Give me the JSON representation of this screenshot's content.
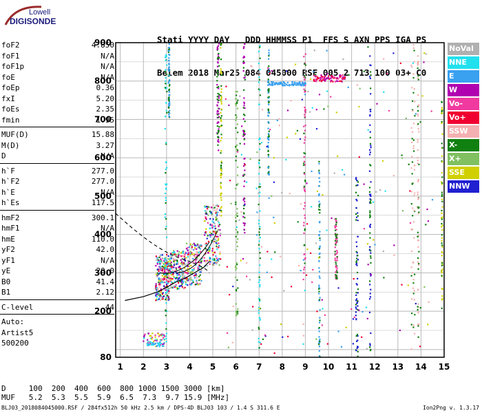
{
  "logo": {
    "line1": "Lowell",
    "line2": "DIGISONDE"
  },
  "header": {
    "line1": "Stati YYYY DAY   DDD HHMMSS P1  FFS S AXN PPS IGA PS",
    "line2": "Belem 2018 Mar25 084 045000 RSF 005 2 713 100 03+ C0"
  },
  "params": [
    [
      {
        "k": "foF2",
        "v": "4.850"
      },
      {
        "k": "foF1",
        "v": "N/A"
      },
      {
        "k": "foF1p",
        "v": "N/A"
      },
      {
        "k": "foE",
        "v": "N/A"
      },
      {
        "k": "foEp",
        "v": "0.36"
      },
      {
        "k": "fxI",
        "v": "5.20"
      },
      {
        "k": "foEs",
        "v": "2.35"
      },
      {
        "k": "fmin",
        "v": "1.95"
      }
    ],
    [
      {
        "k": "MUF(D)",
        "v": "15.88"
      },
      {
        "k": "M(D)",
        "v": "3.27"
      },
      {
        "k": "D",
        "v": "N/A"
      }
    ],
    [
      {
        "k": "h`F",
        "v": "277.0"
      },
      {
        "k": "h`F2",
        "v": "277.0"
      },
      {
        "k": "h`E",
        "v": "N/A"
      },
      {
        "k": "h`Es",
        "v": "117.5"
      }
    ],
    [
      {
        "k": "hmF2",
        "v": "300.1"
      },
      {
        "k": "hmF1",
        "v": "N/A"
      },
      {
        "k": "hmE",
        "v": "110.0"
      },
      {
        "k": "yF2",
        "v": "42.0"
      },
      {
        "k": "yF1",
        "v": "N/A"
      },
      {
        "k": "yE",
        "v": "20.0"
      },
      {
        "k": "B0",
        "v": "41.4"
      },
      {
        "k": "B1",
        "v": "2.12"
      }
    ],
    [
      {
        "k": "C-level",
        "v": "44"
      }
    ]
  ],
  "auto": {
    "line1": "Auto:",
    "line2": "Artist5",
    "line3": "500200"
  },
  "legend": [
    {
      "label": "NoVal",
      "color": "#b0b0b0"
    },
    {
      "label": "NNE",
      "color": "#22e0ee"
    },
    {
      "label": "E",
      "color": "#3aa0f0"
    },
    {
      "label": "W",
      "color": "#b000b0"
    },
    {
      "label": "Vo-",
      "color": "#f03aa0"
    },
    {
      "label": "Vo+",
      "color": "#f00030"
    },
    {
      "label": "SSW",
      "color": "#f4b0b0"
    },
    {
      "label": "X-",
      "color": "#108010"
    },
    {
      "label": "X+",
      "color": "#80c060"
    },
    {
      "label": "SSE",
      "color": "#d0d000"
    },
    {
      "label": "NNW",
      "color": "#2020d0"
    }
  ],
  "axes": {
    "y_ticks": [
      "900",
      "800",
      "700",
      "600",
      "500",
      "400",
      "300",
      "200",
      "80"
    ],
    "x_ticks": [
      "1",
      "2",
      "3",
      "4",
      "5",
      "6",
      "7",
      "8",
      "9",
      "10",
      "11",
      "12",
      "13",
      "14",
      "15"
    ]
  },
  "bottom": {
    "line1": "D     100  200  400  600  800 1000 1500 3000 [km]",
    "line2": "MUF   5.2  5.3  5.5  5.9  6.5  7.3  9.7 15.9 [MHz]"
  },
  "footer": "BLJ03_2018084045000.RSF / 284fx512h 50 kHz 2.5 km / DPS-4D BLJ03 103 / 1.4 S 311.6 E",
  "version": "Ion2Png v. 1.3.17",
  "chart_data": {
    "type": "scatter",
    "title": "",
    "xlabel": "",
    "ylabel": "",
    "xlim": [
      0.8,
      15
    ],
    "ylim": [
      80,
      900
    ],
    "trace_profile": {
      "x": [
        1.2,
        2.0,
        2.6,
        3.0,
        3.4,
        3.8,
        4.2,
        4.6,
        4.85
      ],
      "y": [
        228,
        238,
        250,
        262,
        276,
        286,
        300,
        314,
        330
      ]
    }
  }
}
